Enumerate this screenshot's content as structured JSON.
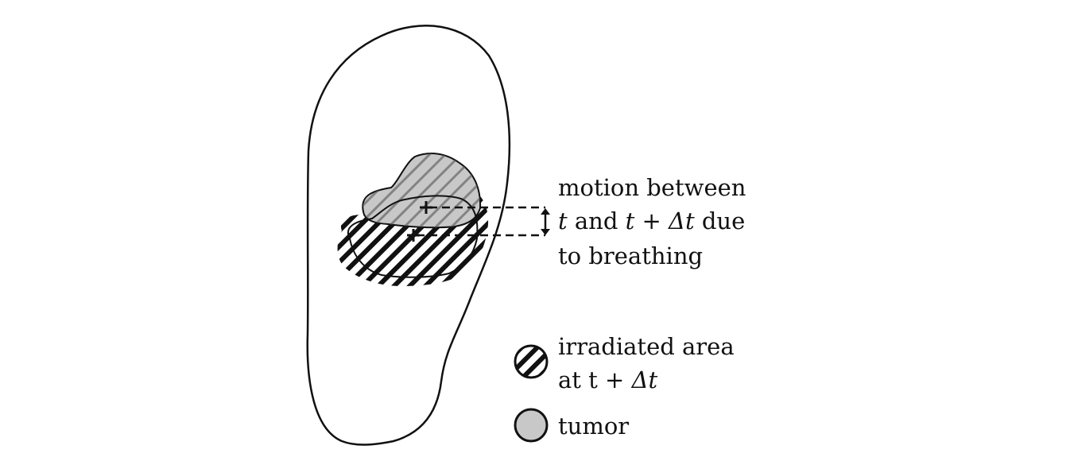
{
  "annotation": {
    "line1": "motion between",
    "line2_t1": "t",
    "line2_and": " and ",
    "line2_expr": "t + Δt",
    "line2_due": " due",
    "line3": "to breathing"
  },
  "legend": {
    "irradiated_line1": "irradiated area",
    "irradiated_line2_prefix": "at t + ",
    "irradiated_line2_math": "Δt",
    "tumor": "tumor"
  },
  "colors": {
    "outline": "#111111",
    "tumor_fill": "#c8c8c8",
    "hatch": "#111111",
    "background": "#ffffff"
  }
}
